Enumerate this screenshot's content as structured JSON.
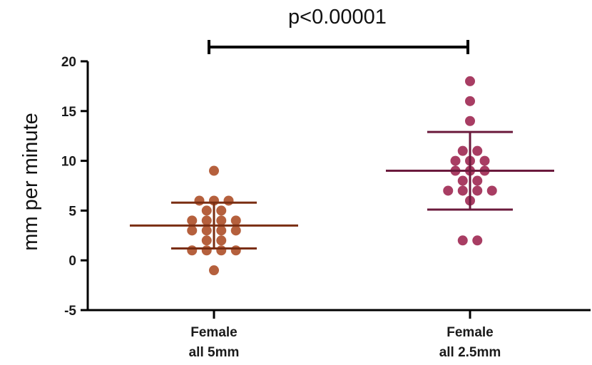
{
  "chart_data": {
    "type": "scatter",
    "ylabel": "mm per minute",
    "ylim": [
      -5,
      20
    ],
    "yticks": [
      "-5",
      "0",
      "5",
      "10",
      "15",
      "20"
    ],
    "categories": [
      {
        "line1": "Female",
        "line2": "all 5mm"
      },
      {
        "line1": "Female",
        "line2": "all 2.5mm"
      }
    ],
    "series": [
      {
        "color": "#b5603d",
        "line_color": "#7a2e12",
        "points": [
          9,
          6,
          6,
          6,
          5,
          5,
          4,
          4,
          4,
          4,
          3,
          3,
          3,
          3,
          2,
          2,
          1,
          1,
          1,
          1,
          -1
        ],
        "mean": 3.5,
        "sd_upper": 5.8,
        "sd_lower": 1.2
      },
      {
        "color": "#a83d63",
        "line_color": "#6b1a3c",
        "points": [
          18,
          16,
          14,
          11,
          11,
          10,
          10,
          10,
          9,
          9,
          9,
          8,
          8,
          7,
          7,
          7,
          7,
          6,
          2,
          2
        ],
        "mean": 9,
        "sd_upper": 12.9,
        "sd_lower": 5.1
      }
    ],
    "annotation": {
      "text": "p<0.00001"
    }
  }
}
